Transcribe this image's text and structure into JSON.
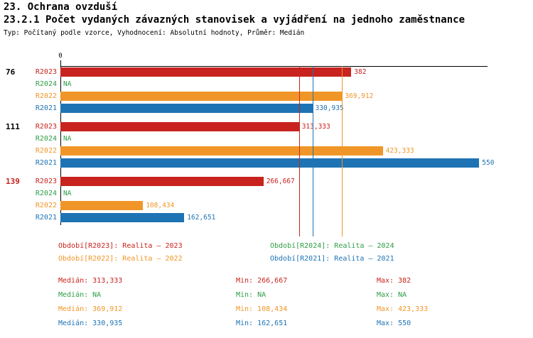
{
  "header": {
    "title": "23. Ochrana ovzduší",
    "subtitle": "23.2.1 Počet vydaných závazných stanovisek a vyjádření na jednoho zaměstnance",
    "typeline": "Typ: Počítaný podle vzorce, Vyhodnocení: Absolutní hodnoty, Průměr: Medián"
  },
  "colors": {
    "R2023": "#c8231e",
    "R2024": "#2e9e46",
    "R2022": "#f09628",
    "R2021": "#1e73b4",
    "axis": "#000000",
    "highlight_group_label": "#c8231e"
  },
  "chart_data": {
    "type": "bar",
    "orientation": "horizontal",
    "title": "23.2.1 Počet vydaných závazných stanovisek a vyjádření na jednoho zaměstnance",
    "xlabel": "",
    "ylabel": "",
    "x_axis": {
      "origin_label": "0",
      "min": 0,
      "max": 560,
      "grid": false
    },
    "series_order": [
      "R2023",
      "R2024",
      "R2022",
      "R2021"
    ],
    "groups": [
      {
        "label": "76",
        "highlight": false,
        "bars": [
          {
            "series": "R2023",
            "value": 382,
            "label": "382"
          },
          {
            "series": "R2024",
            "value": null,
            "label": "NA"
          },
          {
            "series": "R2022",
            "value": 369.912,
            "label": "369,912"
          },
          {
            "series": "R2021",
            "value": 330.935,
            "label": "330,935"
          }
        ]
      },
      {
        "label": "111",
        "highlight": false,
        "bars": [
          {
            "series": "R2023",
            "value": 313.333,
            "label": "313,333"
          },
          {
            "series": "R2024",
            "value": null,
            "label": "NA"
          },
          {
            "series": "R2022",
            "value": 423.333,
            "label": "423,333"
          },
          {
            "series": "R2021",
            "value": 550,
            "label": "550"
          }
        ]
      },
      {
        "label": "139",
        "highlight": true,
        "bars": [
          {
            "series": "R2023",
            "value": 266.667,
            "label": "266,667"
          },
          {
            "series": "R2024",
            "value": null,
            "label": "NA"
          },
          {
            "series": "R2022",
            "value": 108.434,
            "label": "108,434"
          },
          {
            "series": "R2021",
            "value": 162.651,
            "label": "162,651"
          }
        ]
      }
    ],
    "median_lines": [
      {
        "series": "R2023",
        "value": 313.333
      },
      {
        "series": "R2021",
        "value": 330.935
      },
      {
        "series": "R2022",
        "value": 369.912
      }
    ]
  },
  "legend": {
    "items": [
      {
        "series": "R2023",
        "label": "Období[R2023]: Realita – 2023"
      },
      {
        "series": "R2024",
        "label": "Období[R2024]: Realita – 2024"
      },
      {
        "series": "R2022",
        "label": "Období[R2022]: Realita – 2022"
      },
      {
        "series": "R2021",
        "label": "Období[R2021]: Realita – 2021"
      }
    ]
  },
  "stats": {
    "rows": [
      {
        "series": "R2023",
        "median": "Medián: 313,333",
        "min": "Min: 266,667",
        "max": "Max: 382"
      },
      {
        "series": "R2024",
        "median": "Medián: NA",
        "min": "Min: NA",
        "max": "Max: NA"
      },
      {
        "series": "R2022",
        "median": "Medián: 369,912",
        "min": "Min: 108,434",
        "max": "Max: 423,333"
      },
      {
        "series": "R2021",
        "median": "Medián: 330,935",
        "min": "Min: 162,651",
        "max": "Max: 550"
      }
    ]
  }
}
